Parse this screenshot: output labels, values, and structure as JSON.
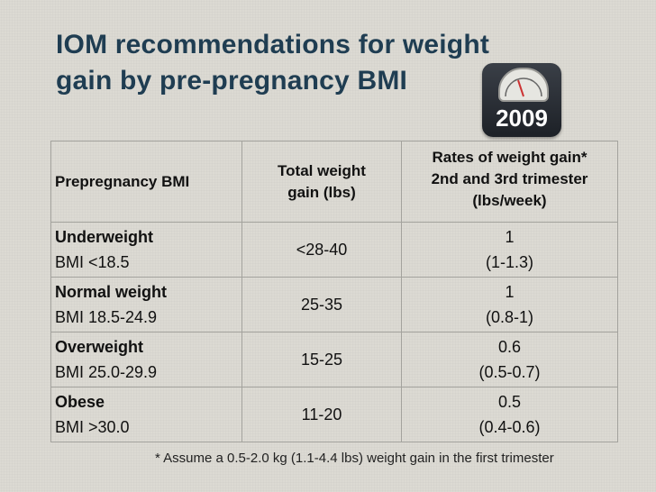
{
  "title": {
    "line1": "IOM recommendations for weight",
    "line2": "gain by pre-pregnancy BMI"
  },
  "badge": {
    "year": "2009",
    "icon": "scale-icon"
  },
  "table": {
    "headers": {
      "col1": "Prepregnancy BMI",
      "col2_line1": "Total weight",
      "col2_line2": "gain (lbs)",
      "col3_line1": "Rates of weight gain*",
      "col3_line2": "2nd and 3rd trimester",
      "col3_line3": "(lbs/week)"
    },
    "rows": [
      {
        "name": "Underweight",
        "bmi": "BMI <18.5",
        "total": "<28-40",
        "rate": "1",
        "range": "(1-1.3)"
      },
      {
        "name": "Normal weight",
        "bmi": "BMI 18.5-24.9",
        "total": "25-35",
        "rate": "1",
        "range": "(0.8-1)"
      },
      {
        "name": "Overweight",
        "bmi": "BMI 25.0-29.9",
        "total": "15-25",
        "rate": "0.6",
        "range": "(0.5-0.7)"
      },
      {
        "name": "Obese",
        "bmi": "BMI >30.0",
        "total": "11-20",
        "rate": "0.5",
        "range": "(0.4-0.6)"
      }
    ]
  },
  "footnote": "*  Assume a 0.5-2.0 kg (1.1-4.4 lbs) weight gain in the first trimester",
  "colors": {
    "title": "#1f3d52",
    "background": "#dcdad3"
  }
}
